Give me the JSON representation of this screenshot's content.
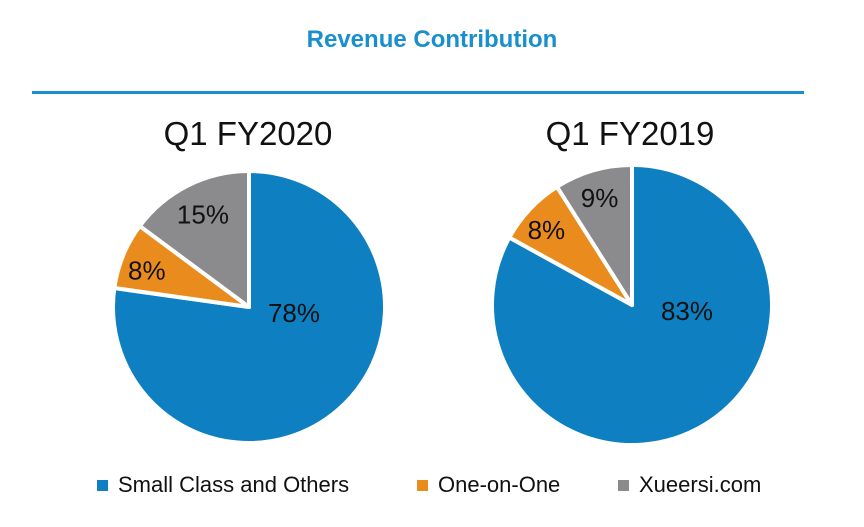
{
  "title": "Revenue Contribution",
  "colors": {
    "accent": "#1a8fce",
    "Small Class and Others": "#0e7fc0",
    "One-on-One": "#ea8b1e",
    "Xueersi.com": "#8b8a8c"
  },
  "legend": [
    {
      "label": "Small Class and Others",
      "color": "#0e7fc0"
    },
    {
      "label": "One-on-One",
      "color": "#ea8b1e"
    },
    {
      "label": "Xueersi.com",
      "color": "#8b8a8c"
    }
  ],
  "chart_data": [
    {
      "type": "pie",
      "title": "Q1 FY2020",
      "labels": [
        "Small Class and Others",
        "One-on-One",
        "Xueersi.com"
      ],
      "values": [
        78,
        8,
        15
      ],
      "data_labels": [
        "78%",
        "8%",
        "15%"
      ]
    },
    {
      "type": "pie",
      "title": "Q1 FY2019",
      "labels": [
        "Small Class and Others",
        "One-on-One",
        "Xueersi.com"
      ],
      "values": [
        83,
        8,
        9
      ],
      "data_labels": [
        "83%",
        "8%",
        "9%"
      ]
    }
  ]
}
